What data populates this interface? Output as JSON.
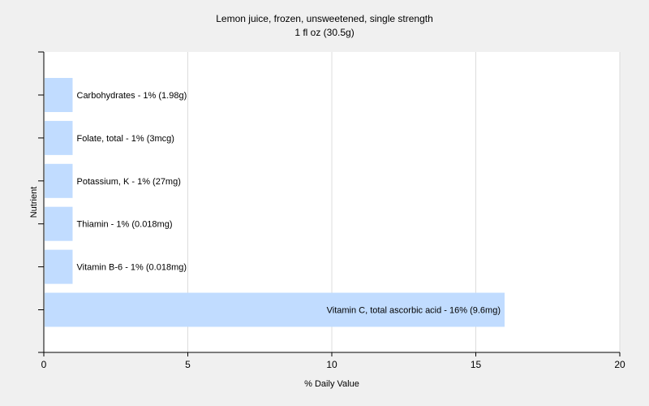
{
  "chart_data": {
    "type": "bar",
    "orientation": "horizontal",
    "title": "Lemon juice, frozen, unsweetened, single strength",
    "subtitle": "1 fl oz (30.5g)",
    "xlabel": "% Daily Value",
    "ylabel": "Nutrient",
    "xlim": [
      0,
      20
    ],
    "xticks": [
      0,
      5,
      10,
      15,
      20
    ],
    "grid": true,
    "colors": {
      "bar": "#c1dcff",
      "plot_bg": "#ffffff",
      "page_bg": "#f0f0f0",
      "grid": "#dcdcdc",
      "axis": "#000000"
    },
    "categories": [
      "Carbohydrates",
      "Folate, total",
      "Potassium, K",
      "Thiamin",
      "Vitamin B-6",
      "Vitamin C, total ascorbic acid"
    ],
    "values": [
      1,
      1,
      1,
      1,
      1,
      16
    ],
    "labels": [
      "Carbohydrates - 1% (1.98g)",
      "Folate, total - 1% (3mcg)",
      "Potassium, K - 1% (27mg)",
      "Thiamin - 1% (0.018mg)",
      "Vitamin B-6 - 1% (0.018mg)",
      "Vitamin C, total ascorbic acid - 16% (9.6mg)"
    ]
  }
}
